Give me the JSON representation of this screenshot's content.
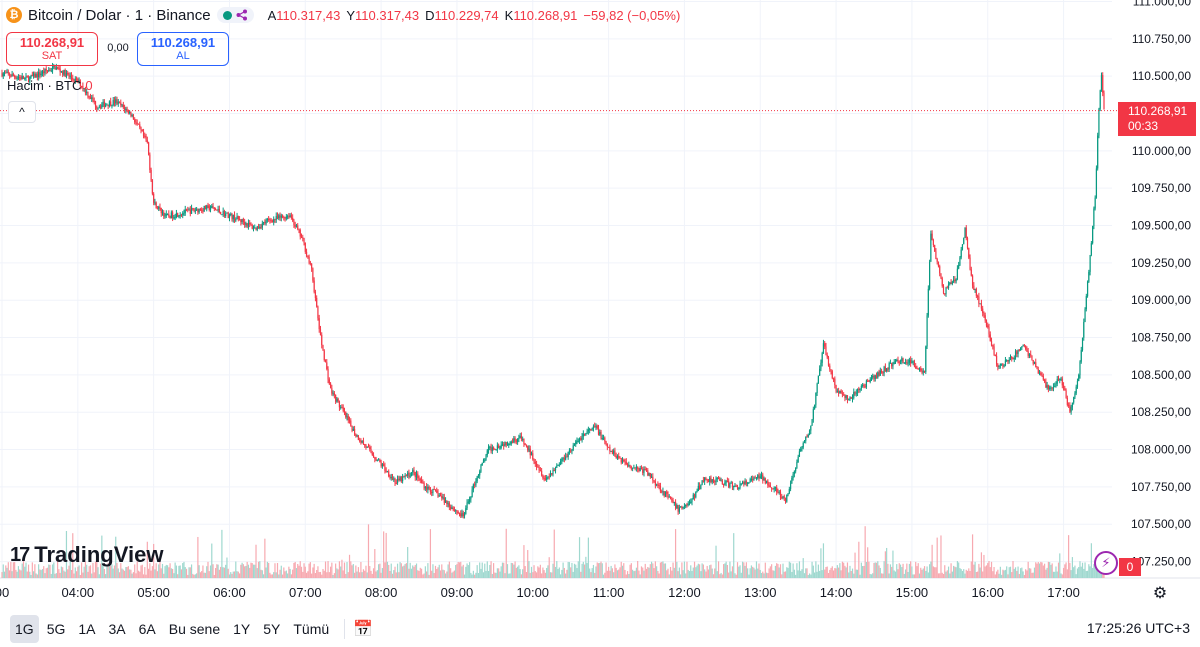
{
  "header": {
    "symbol": "Bitcoin / Dolar · 1 · Binance",
    "coin_icon": "bitcoin-icon",
    "ohlc": [
      {
        "label": "A",
        "value": "110.317,43"
      },
      {
        "label": "Y",
        "value": "110.317,43"
      },
      {
        "label": "D",
        "value": "110.229,74"
      },
      {
        "label": "K",
        "value": "110.268,91"
      }
    ],
    "change": "−59,82 (−0,05%)"
  },
  "trade": {
    "sell_price": "110.268,91",
    "sell_label": "SAT",
    "spread": "0,00",
    "buy_price": "110.268,91",
    "buy_label": "AL"
  },
  "volume_legend": {
    "label": "Hacim · BTC",
    "value": "0"
  },
  "last_price": {
    "price": "110.268,91",
    "countdown": "00:33",
    "value": 110268.91
  },
  "volume_tag": "0",
  "logo": {
    "mark": "17",
    "text": "TradingView"
  },
  "toolbar": {
    "timeframes": [
      "1G",
      "5G",
      "1A",
      "3A",
      "6A",
      "Bu sene",
      "1Y",
      "5Y",
      "Tümü"
    ],
    "active": "1G",
    "clock": "17:25:26 UTC+3"
  },
  "colors": {
    "up": "#089981",
    "down": "#f23645",
    "up_volume": "#9fd8cf",
    "down_volume": "#f7a9b0",
    "grid": "#f0f3fa"
  },
  "chart_data": {
    "type": "candlestick",
    "y_ticks": [
      "111.000,00",
      "110.750,00",
      "110.500,00",
      "110.250,00",
      "110.000,00",
      "109.750,00",
      "109.500,00",
      "109.250,00",
      "109.000,00",
      "108.750,00",
      "108.500,00",
      "108.250,00",
      "108.000,00",
      "107.750,00",
      "107.500,00",
      "107.250,00"
    ],
    "y_tick_values": [
      111000,
      110750,
      110500,
      110250,
      110000,
      109750,
      109500,
      109250,
      109000,
      108750,
      108500,
      108250,
      108000,
      107750,
      107500,
      107250
    ],
    "ylim": [
      107140,
      111010
    ],
    "x_ticks": [
      "00",
      "04:00",
      "05:00",
      "06:00",
      "07:00",
      "08:00",
      "09:00",
      "10:00",
      "11:00",
      "12:00",
      "13:00",
      "14:00",
      "15:00",
      "16:00",
      "17:00"
    ],
    "x_tick_minutes": [
      180,
      240,
      300,
      360,
      420,
      480,
      540,
      600,
      660,
      720,
      780,
      840,
      900,
      960,
      1020
    ],
    "xlim_minutes": [
      180,
      1052
    ],
    "price_path": [
      [
        180,
        110520
      ],
      [
        200,
        110480
      ],
      [
        222,
        110560
      ],
      [
        242,
        110450
      ],
      [
        255,
        110300
      ],
      [
        270,
        110330
      ],
      [
        282,
        110250
      ],
      [
        295,
        110050
      ],
      [
        300,
        109650
      ],
      [
        310,
        109560
      ],
      [
        330,
        109600
      ],
      [
        345,
        109620
      ],
      [
        370,
        109530
      ],
      [
        380,
        109480
      ],
      [
        390,
        109530
      ],
      [
        408,
        109570
      ],
      [
        418,
        109400
      ],
      [
        425,
        109200
      ],
      [
        432,
        108750
      ],
      [
        440,
        108400
      ],
      [
        450,
        108250
      ],
      [
        460,
        108100
      ],
      [
        475,
        107950
      ],
      [
        492,
        107780
      ],
      [
        505,
        107850
      ],
      [
        515,
        107750
      ],
      [
        525,
        107700
      ],
      [
        535,
        107620
      ],
      [
        545,
        107550
      ],
      [
        555,
        107800
      ],
      [
        565,
        108000
      ],
      [
        580,
        108050
      ],
      [
        590,
        108080
      ],
      [
        600,
        107950
      ],
      [
        610,
        107800
      ],
      [
        625,
        107950
      ],
      [
        640,
        108100
      ],
      [
        650,
        108150
      ],
      [
        660,
        108000
      ],
      [
        675,
        107900
      ],
      [
        690,
        107850
      ],
      [
        700,
        107750
      ],
      [
        715,
        107600
      ],
      [
        725,
        107650
      ],
      [
        735,
        107800
      ],
      [
        745,
        107800
      ],
      [
        760,
        107750
      ],
      [
        770,
        107780
      ],
      [
        780,
        107820
      ],
      [
        790,
        107750
      ],
      [
        800,
        107650
      ],
      [
        810,
        107950
      ],
      [
        820,
        108150
      ],
      [
        830,
        108700
      ],
      [
        840,
        108400
      ],
      [
        850,
        108330
      ],
      [
        860,
        108420
      ],
      [
        870,
        108480
      ],
      [
        880,
        108550
      ],
      [
        890,
        108600
      ],
      [
        900,
        108580
      ],
      [
        910,
        108520
      ],
      [
        915,
        109450
      ],
      [
        925,
        109050
      ],
      [
        935,
        109150
      ],
      [
        942,
        109470
      ],
      [
        948,
        109100
      ],
      [
        955,
        108950
      ],
      [
        960,
        108800
      ],
      [
        968,
        108550
      ],
      [
        978,
        108600
      ],
      [
        988,
        108700
      ],
      [
        998,
        108560
      ],
      [
        1008,
        108400
      ],
      [
        1018,
        108480
      ],
      [
        1025,
        108250
      ],
      [
        1032,
        108500
      ],
      [
        1040,
        109200
      ],
      [
        1045,
        109700
      ],
      [
        1048,
        110300
      ],
      [
        1050,
        110520
      ],
      [
        1052,
        110268
      ]
    ],
    "last": 110268.91
  }
}
